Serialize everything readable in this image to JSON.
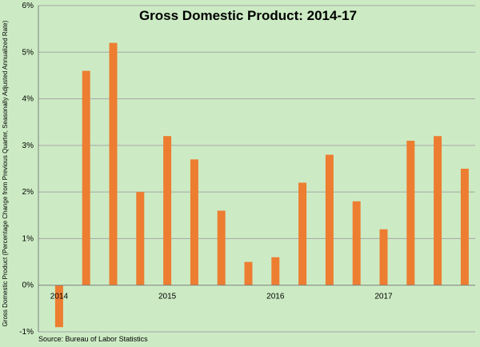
{
  "chart_data": {
    "type": "bar",
    "title": "Gross Domestic Product: 2014-17",
    "ylabel": "Gross Domestic Product (Percentage Change from Previous Quarter, Seasonally Adjusted Annualized Rate)",
    "xlabel": "",
    "source": "Source: Bureau of Labor Statistics",
    "ylim": [
      -1,
      6
    ],
    "yticks": [
      -1,
      0,
      1,
      2,
      3,
      4,
      5,
      6
    ],
    "ytick_labels": [
      "-1%",
      "0%",
      "1%",
      "2%",
      "3%",
      "4%",
      "5%",
      "6%"
    ],
    "year_labels": [
      "2014",
      "2015",
      "2016",
      "2017"
    ],
    "year_label_positions": [
      0,
      4,
      8,
      12
    ],
    "values": [
      -0.9,
      4.6,
      5.2,
      2.0,
      3.2,
      2.7,
      1.6,
      0.5,
      0.6,
      2.2,
      2.8,
      1.8,
      1.2,
      3.1,
      3.2,
      2.5
    ],
    "bar_color": "#ed7d31",
    "background_color": "#ccebc4",
    "grid": true,
    "legend": "none"
  }
}
